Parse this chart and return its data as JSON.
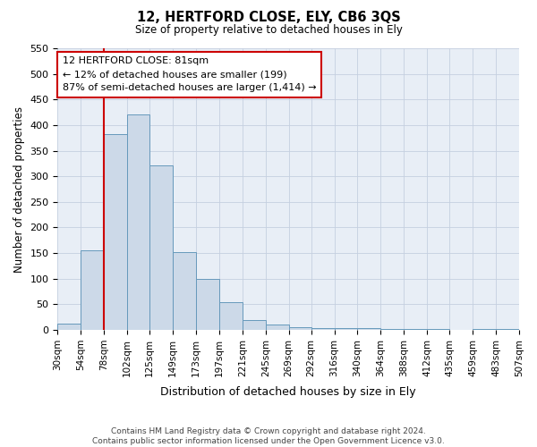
{
  "title": "12, HERTFORD CLOSE, ELY, CB6 3QS",
  "subtitle": "Size of property relative to detached houses in Ely",
  "xlabel": "Distribution of detached houses by size in Ely",
  "ylabel": "Number of detached properties",
  "footer_line1": "Contains HM Land Registry data © Crown copyright and database right 2024.",
  "footer_line2": "Contains public sector information licensed under the Open Government Licence v3.0.",
  "bar_color": "#ccd9e8",
  "bar_edge_color": "#6699bb",
  "grid_color": "#c5cfe0",
  "vline_color": "#cc0000",
  "vline_x": 78,
  "annotation_line1": "12 HERTFORD CLOSE: 81sqm",
  "annotation_line2": "← 12% of detached houses are smaller (199)",
  "annotation_line3": "87% of semi-detached houses are larger (1,414) →",
  "annotation_box_color": "#cc0000",
  "ylim": [
    0,
    550
  ],
  "yticks": [
    0,
    50,
    100,
    150,
    200,
    250,
    300,
    350,
    400,
    450,
    500,
    550
  ],
  "bin_edges": [
    30,
    54,
    78,
    102,
    125,
    149,
    173,
    197,
    221,
    245,
    269,
    292,
    316,
    340,
    364,
    388,
    412,
    435,
    459,
    483,
    507
  ],
  "bar_heights": [
    13,
    155,
    383,
    420,
    321,
    152,
    100,
    55,
    20,
    10,
    5,
    3,
    3,
    3,
    1,
    1,
    1,
    0,
    1,
    1
  ],
  "background_color": "#e8eef6"
}
